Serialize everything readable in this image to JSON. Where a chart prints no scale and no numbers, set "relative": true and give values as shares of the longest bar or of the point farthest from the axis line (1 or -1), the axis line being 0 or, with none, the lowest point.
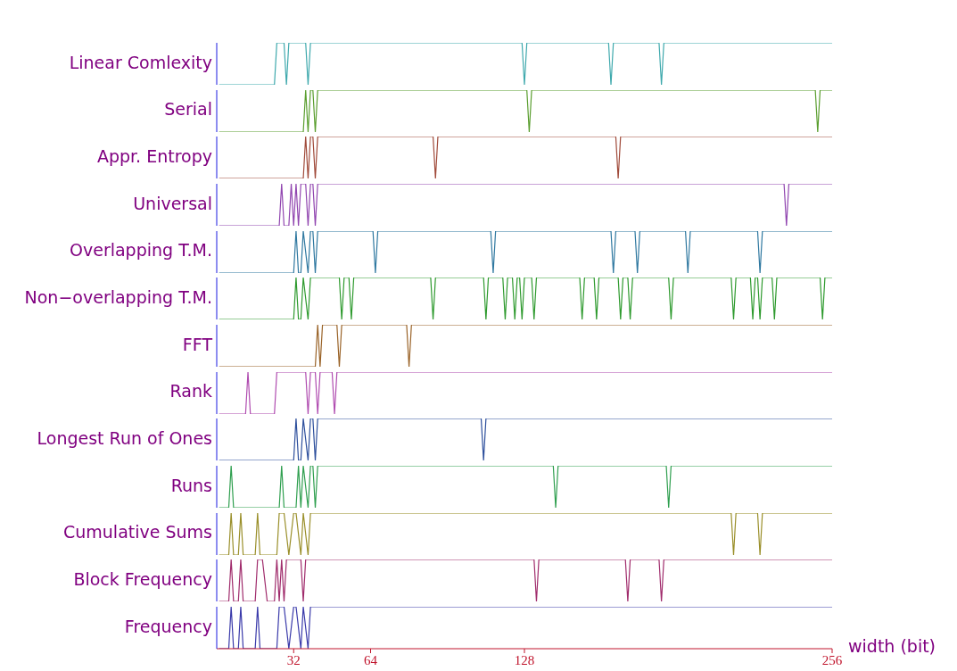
{
  "chart_data": [
    {
      "type": "line",
      "ylabel": "Linear Comlexity",
      "relative": true,
      "xlim": [
        0,
        256
      ],
      "tick_labels": false,
      "series": [
        {
          "color": "#3fa9ad",
          "x": [
            1,
            24,
            25,
            28,
            29,
            30,
            37,
            38,
            39,
            127,
            128,
            129,
            163,
            164,
            165,
            184,
            185,
            186,
            256
          ],
          "values": [
            0,
            0,
            1,
            1,
            0,
            1,
            1,
            0,
            1,
            1,
            0,
            1,
            1,
            0,
            1,
            1,
            0,
            1,
            1
          ]
        }
      ]
    },
    {
      "type": "line",
      "ylabel": "Serial",
      "relative": true,
      "xlim": [
        0,
        256
      ],
      "tick_labels": false,
      "series": [
        {
          "color": "#5a9e2f",
          "x": [
            1,
            36,
            37,
            38,
            39,
            40,
            41,
            42,
            129,
            130,
            131,
            249,
            250,
            251,
            256
          ],
          "values": [
            0,
            0,
            1,
            0,
            1,
            1,
            0,
            1,
            1,
            0,
            1,
            1,
            0,
            1,
            1
          ]
        }
      ]
    },
    {
      "type": "line",
      "ylabel": "Appr. Entropy",
      "relative": true,
      "xlim": [
        0,
        256
      ],
      "tick_labels": false,
      "series": [
        {
          "color": "#a04a3a",
          "x": [
            1,
            36,
            37,
            38,
            39,
            40,
            41,
            42,
            90,
            91,
            92,
            166,
            167,
            168,
            256
          ],
          "values": [
            0,
            0,
            1,
            0,
            1,
            1,
            0,
            1,
            1,
            0,
            1,
            1,
            0,
            1,
            1
          ]
        }
      ]
    },
    {
      "type": "line",
      "ylabel": "Universal",
      "relative": true,
      "xlim": [
        0,
        256
      ],
      "tick_labels": false,
      "series": [
        {
          "color": "#9146b0",
          "x": [
            1,
            26,
            27,
            28,
            30,
            31,
            32,
            33,
            34,
            35,
            37,
            38,
            39,
            40,
            41,
            42,
            236,
            237,
            238,
            256
          ],
          "values": [
            0,
            0,
            1,
            0,
            0,
            1,
            0,
            1,
            0,
            1,
            1,
            0,
            1,
            1,
            0,
            1,
            1,
            0,
            1,
            1
          ]
        }
      ]
    },
    {
      "type": "line",
      "ylabel": "Overlapping T.M.",
      "relative": true,
      "xlim": [
        0,
        256
      ],
      "tick_labels": false,
      "series": [
        {
          "color": "#2f78a0",
          "x": [
            1,
            32,
            33,
            34,
            35,
            36,
            38,
            39,
            40,
            41,
            42,
            65,
            66,
            67,
            114,
            115,
            116,
            164,
            165,
            166,
            174,
            175,
            176,
            195,
            196,
            197,
            225,
            226,
            227,
            256
          ],
          "values": [
            0,
            0,
            1,
            0,
            0,
            1,
            0,
            1,
            1,
            0,
            1,
            1,
            0,
            1,
            1,
            0,
            1,
            1,
            0,
            1,
            1,
            0,
            1,
            1,
            0,
            1,
            1,
            0,
            1,
            1
          ]
        }
      ]
    },
    {
      "type": "line",
      "ylabel": "Non−overlapping T.M.",
      "relative": true,
      "xlim": [
        0,
        256
      ],
      "tick_labels": false,
      "series": [
        {
          "color": "#2e9a2e",
          "x": [
            1,
            32,
            33,
            34,
            35,
            36,
            38,
            39,
            51,
            52,
            53,
            55,
            56,
            57,
            89,
            90,
            91,
            111,
            112,
            113,
            119,
            120,
            121,
            123,
            124,
            125,
            126,
            127,
            128,
            131,
            132,
            133,
            151,
            152,
            153,
            157,
            158,
            159,
            167,
            168,
            169,
            171,
            172,
            173,
            188,
            189,
            190,
            214,
            215,
            216,
            222,
            223,
            224,
            225,
            226,
            227,
            231,
            232,
            233,
            251,
            252,
            253,
            256
          ],
          "values": [
            0,
            0,
            1,
            0,
            0,
            1,
            0,
            1,
            1,
            0,
            1,
            1,
            0,
            1,
            1,
            0,
            1,
            1,
            0,
            1,
            1,
            0,
            1,
            1,
            0,
            1,
            1,
            0,
            1,
            1,
            0,
            1,
            1,
            0,
            1,
            1,
            0,
            1,
            1,
            0,
            1,
            1,
            0,
            1,
            1,
            0,
            1,
            1,
            0,
            1,
            1,
            0,
            1,
            1,
            0,
            1,
            1,
            0,
            1,
            1,
            0,
            1,
            1
          ]
        }
      ]
    },
    {
      "type": "line",
      "ylabel": "FFT",
      "relative": true,
      "xlim": [
        0,
        256
      ],
      "tick_labels": false,
      "series": [
        {
          "color": "#9a6328",
          "x": [
            1,
            41,
            42,
            43,
            44,
            50,
            51,
            52,
            79,
            80,
            81,
            256
          ],
          "values": [
            0,
            0,
            1,
            0,
            1,
            1,
            0,
            1,
            1,
            0,
            1,
            1
          ]
        }
      ]
    },
    {
      "type": "line",
      "ylabel": "Rank",
      "relative": true,
      "xlim": [
        0,
        256
      ],
      "tick_labels": false,
      "series": [
        {
          "color": "#b04cb0",
          "x": [
            1,
            12,
            13,
            14,
            24,
            25,
            37,
            38,
            39,
            41,
            42,
            43,
            48,
            49,
            50,
            256
          ],
          "values": [
            0,
            0,
            1,
            0,
            0,
            1,
            1,
            0,
            1,
            1,
            0,
            1,
            1,
            0,
            1,
            1
          ]
        }
      ]
    },
    {
      "type": "line",
      "ylabel": "Longest Run of Ones",
      "relative": true,
      "xlim": [
        0,
        256
      ],
      "tick_labels": false,
      "series": [
        {
          "color": "#2d4f9c",
          "x": [
            1,
            32,
            33,
            34,
            35,
            36,
            38,
            39,
            40,
            41,
            42,
            110,
            111,
            112,
            256
          ],
          "values": [
            0,
            0,
            1,
            0,
            0,
            1,
            0,
            1,
            1,
            0,
            1,
            1,
            0,
            1,
            1
          ]
        }
      ]
    },
    {
      "type": "line",
      "ylabel": "Runs",
      "relative": true,
      "xlim": [
        0,
        256
      ],
      "tick_labels": false,
      "series": [
        {
          "color": "#2f9f4f",
          "x": [
            1,
            5,
            6,
            7,
            26,
            27,
            28,
            33,
            34,
            35,
            36,
            38,
            39,
            40,
            41,
            42,
            140,
            141,
            142,
            187,
            188,
            189,
            256
          ],
          "values": [
            0,
            0,
            1,
            0,
            0,
            1,
            0,
            0,
            1,
            0,
            1,
            0,
            1,
            1,
            0,
            1,
            1,
            0,
            1,
            1,
            0,
            1,
            1
          ]
        }
      ]
    },
    {
      "type": "line",
      "ylabel": "Cumulative Sums",
      "relative": true,
      "xlim": [
        0,
        256
      ],
      "tick_labels": false,
      "series": [
        {
          "color": "#9a8f2a",
          "x": [
            1,
            5,
            6,
            7,
            9,
            10,
            11,
            16,
            17,
            18,
            25,
            26,
            28,
            30,
            32,
            33,
            35,
            36,
            38,
            39,
            214,
            215,
            216,
            225,
            226,
            227,
            256
          ],
          "values": [
            0,
            0,
            1,
            0,
            0,
            1,
            0,
            0,
            1,
            0,
            0,
            1,
            1,
            0,
            1,
            1,
            0,
            1,
            0,
            1,
            1,
            0,
            1,
            1,
            0,
            1,
            1
          ]
        }
      ]
    },
    {
      "type": "line",
      "ylabel": "Block Frequency",
      "relative": true,
      "xlim": [
        0,
        256
      ],
      "tick_labels": false,
      "series": [
        {
          "color": "#a02c6c",
          "x": [
            1,
            5,
            6,
            7,
            9,
            10,
            11,
            16,
            17,
            19,
            21,
            24,
            25,
            26,
            27,
            28,
            29,
            35,
            36,
            37,
            132,
            133,
            134,
            170,
            171,
            172,
            184,
            185,
            186,
            256
          ],
          "values": [
            0,
            0,
            1,
            0,
            0,
            1,
            0,
            0,
            1,
            1,
            0,
            0,
            1,
            0,
            1,
            0,
            1,
            1,
            0,
            1,
            1,
            0,
            1,
            1,
            0,
            1,
            1,
            0,
            1,
            1
          ]
        }
      ]
    },
    {
      "type": "line",
      "ylabel": "Frequency",
      "xlabel": "width (bit)",
      "relative": true,
      "xlim": [
        0,
        256
      ],
      "xticks": [
        32,
        64,
        128,
        256
      ],
      "tick_labels": "x",
      "series": [
        {
          "color": "#3a3aaa",
          "x": [
            1,
            5,
            6,
            7,
            9,
            10,
            11,
            16,
            17,
            18,
            25,
            26,
            28,
            30,
            32,
            33,
            35,
            36,
            38,
            39,
            256
          ],
          "values": [
            0,
            0,
            1,
            0,
            0,
            1,
            0,
            0,
            1,
            0,
            0,
            1,
            1,
            0,
            1,
            1,
            0,
            1,
            0,
            1,
            1
          ]
        }
      ]
    }
  ]
}
